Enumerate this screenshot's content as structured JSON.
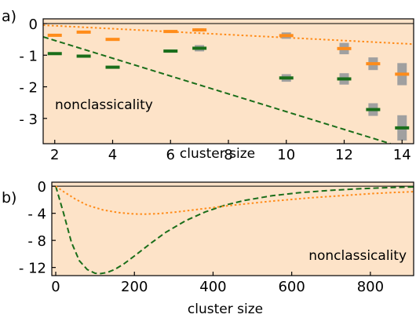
{
  "chart_data": [
    {
      "type": "scatter",
      "panel_label": "a)",
      "xlabel": "cluster size",
      "annotation": "nonclassicality",
      "xlim": [
        1.6,
        14.4
      ],
      "ylim": [
        -3.8,
        0.15
      ],
      "xticks": [
        "2",
        "4",
        "6",
        "8",
        "10",
        "12",
        "14"
      ],
      "yticks": [
        "0",
        "- 1",
        "- 2",
        "- 3"
      ],
      "ytick_values": [
        0,
        -1,
        -2,
        -3
      ],
      "xtick_values": [
        2,
        4,
        6,
        8,
        10,
        12,
        14
      ],
      "colors": {
        "background": "#fde3c8",
        "orange": "#ff8c1a",
        "green": "#1a6e1a",
        "error": "#a0a0a0"
      },
      "series": [
        {
          "color": "orange",
          "points": [
            {
              "x": 2,
              "y": -0.37,
              "err": 0
            },
            {
              "x": 3,
              "y": -0.27,
              "err": 0
            },
            {
              "x": 4,
              "y": -0.5,
              "err": 0
            },
            {
              "x": 6,
              "y": -0.25,
              "err": 0
            },
            {
              "x": 7,
              "y": -0.2,
              "err": 0.05
            },
            {
              "x": 10,
              "y": -0.38,
              "err": 0.1
            },
            {
              "x": 12,
              "y": -0.79,
              "err": 0.18
            },
            {
              "x": 13,
              "y": -1.27,
              "err": 0.2
            },
            {
              "x": 14,
              "y": -1.6,
              "err": 0.35
            }
          ]
        },
        {
          "color": "green",
          "points": [
            {
              "x": 2,
              "y": -0.95,
              "err": 0
            },
            {
              "x": 3,
              "y": -1.03,
              "err": 0
            },
            {
              "x": 4,
              "y": -1.38,
              "err": 0
            },
            {
              "x": 6,
              "y": -0.87,
              "err": 0.05
            },
            {
              "x": 7,
              "y": -0.78,
              "err": 0.1
            },
            {
              "x": 10,
              "y": -1.72,
              "err": 0.12
            },
            {
              "x": 12,
              "y": -1.75,
              "err": 0.18
            },
            {
              "x": 13,
              "y": -2.72,
              "err": 0.2
            },
            {
              "x": 14,
              "y": -3.3,
              "err": 0.4
            }
          ]
        }
      ],
      "lines": [
        {
          "color": "orange",
          "style": "dotted",
          "x": [
            1.6,
            14.4
          ],
          "y": [
            -0.05,
            -0.65
          ]
        },
        {
          "color": "green",
          "style": "dashed",
          "x": [
            1.6,
            13.6
          ],
          "y": [
            -0.42,
            -3.8
          ]
        }
      ]
    },
    {
      "type": "line",
      "panel_label": "b)",
      "xlabel": "cluster size",
      "annotation": "nonclassicality",
      "xlim": [
        -10,
        910
      ],
      "ylim": [
        -13.2,
        0.6
      ],
      "xticks": [
        "0",
        "200",
        "400",
        "600",
        "800"
      ],
      "xtick_values": [
        0,
        200,
        400,
        600,
        800
      ],
      "yticks": [
        "0",
        "- 4",
        "- 8",
        "- 12"
      ],
      "ytick_values": [
        0,
        -4,
        -8,
        -12
      ],
      "colors": {
        "background": "#fde3c8",
        "orange": "#ff8c1a",
        "green": "#1a6e1a"
      },
      "series": [
        {
          "color": "green",
          "style": "dashed",
          "x": [
            0,
            20,
            40,
            60,
            80,
            100,
            115,
            130,
            150,
            175,
            200,
            240,
            280,
            330,
            380,
            430,
            480,
            550,
            620,
            700,
            780,
            850,
            910
          ],
          "y": [
            0,
            -4.0,
            -8.3,
            -11.0,
            -12.3,
            -12.85,
            -12.9,
            -12.75,
            -12.3,
            -11.4,
            -10.3,
            -8.5,
            -6.8,
            -5.1,
            -3.8,
            -2.8,
            -2.1,
            -1.4,
            -0.95,
            -0.6,
            -0.35,
            -0.2,
            -0.1
          ]
        },
        {
          "color": "orange",
          "style": "dotted",
          "x": [
            0,
            20,
            50,
            80,
            120,
            160,
            200,
            225,
            260,
            300,
            350,
            400,
            450,
            500,
            550,
            600,
            650,
            700,
            750,
            800,
            850,
            910
          ],
          "y": [
            0,
            -0.8,
            -1.9,
            -2.8,
            -3.5,
            -3.9,
            -4.1,
            -4.12,
            -4.05,
            -3.85,
            -3.5,
            -3.15,
            -2.8,
            -2.5,
            -2.2,
            -1.95,
            -1.7,
            -1.5,
            -1.3,
            -1.1,
            -0.95,
            -0.8
          ]
        }
      ]
    }
  ]
}
